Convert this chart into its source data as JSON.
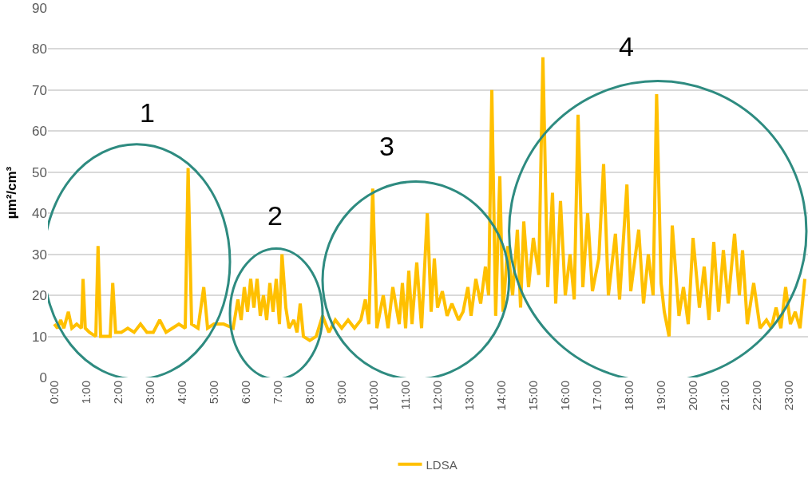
{
  "chart_data": {
    "type": "line",
    "ylabel": "µm²/cm³",
    "x": [
      0,
      0.1,
      0.2,
      0.3,
      0.44,
      0.55,
      0.7,
      0.85,
      0.9,
      0.97,
      1.1,
      1.3,
      1.37,
      1.45,
      1.6,
      1.75,
      1.83,
      1.92,
      2.1,
      2.3,
      2.5,
      2.7,
      2.9,
      3.1,
      3.3,
      3.5,
      3.7,
      3.9,
      4.1,
      4.19,
      4.3,
      4.5,
      4.68,
      4.8,
      5.0,
      5.3,
      5.6,
      5.75,
      5.85,
      5.95,
      6.05,
      6.15,
      6.25,
      6.35,
      6.45,
      6.55,
      6.65,
      6.75,
      6.85,
      6.95,
      7.05,
      7.13,
      7.25,
      7.35,
      7.5,
      7.6,
      7.7,
      7.8,
      8.0,
      8.2,
      8.4,
      8.6,
      8.8,
      9.0,
      9.2,
      9.4,
      9.6,
      9.74,
      9.85,
      9.97,
      10.1,
      10.3,
      10.45,
      10.6,
      10.8,
      10.9,
      11.0,
      11.1,
      11.2,
      11.35,
      11.5,
      11.68,
      11.8,
      11.9,
      12.0,
      12.15,
      12.3,
      12.45,
      12.66,
      12.8,
      12.95,
      13.05,
      13.2,
      13.35,
      13.5,
      13.6,
      13.7,
      13.82,
      13.95,
      14.05,
      14.2,
      14.35,
      14.5,
      14.6,
      14.7,
      14.85,
      15.0,
      15.17,
      15.3,
      15.45,
      15.6,
      15.7,
      15.85,
      16.0,
      16.15,
      16.28,
      16.4,
      16.55,
      16.7,
      16.85,
      17.05,
      17.2,
      17.35,
      17.57,
      17.7,
      17.93,
      18.05,
      18.3,
      18.45,
      18.6,
      18.75,
      18.86,
      19.0,
      19.1,
      19.25,
      19.35,
      19.56,
      19.7,
      19.85,
      20.0,
      20.2,
      20.35,
      20.5,
      20.65,
      20.8,
      20.95,
      21.1,
      21.3,
      21.45,
      21.55,
      21.7,
      21.9,
      22.1,
      22.3,
      22.45,
      22.6,
      22.75,
      22.9,
      23.05,
      23.2,
      23.35,
      23.5
    ],
    "series": [
      {
        "name": "LDSA",
        "color": "#ffc000",
        "values": [
          13,
          12,
          14,
          12,
          16,
          12,
          13,
          12,
          24,
          12,
          11,
          10,
          32,
          10,
          10,
          10,
          23,
          11,
          11,
          12,
          11,
          13,
          11,
          11,
          14,
          11,
          12,
          13,
          12,
          51,
          13,
          12,
          22,
          12,
          13,
          13,
          12,
          19,
          14,
          22,
          16,
          24,
          17,
          24,
          15,
          20,
          14,
          23,
          16,
          24,
          13,
          30,
          17,
          12,
          14,
          11,
          18,
          10,
          9,
          10,
          15,
          11,
          14,
          12,
          14,
          12,
          14,
          19,
          13,
          46,
          12,
          20,
          12,
          22,
          13,
          23,
          12,
          26,
          13,
          28,
          12,
          40,
          16,
          29,
          17,
          21,
          15,
          18,
          14,
          16,
          22,
          15,
          24,
          18,
          27,
          20,
          70,
          15,
          49,
          16,
          32,
          20,
          36,
          17,
          38,
          22,
          34,
          25,
          78,
          22,
          45,
          18,
          43,
          20,
          30,
          19,
          64,
          22,
          40,
          21,
          29,
          52,
          20,
          35,
          19,
          47,
          21,
          36,
          18,
          30,
          20,
          69,
          23,
          16,
          10,
          37,
          15,
          22,
          13,
          34,
          17,
          27,
          14,
          33,
          16,
          31,
          18,
          35,
          20,
          31,
          13,
          23,
          12,
          14,
          12,
          17,
          12,
          22,
          13,
          16,
          12,
          24
        ]
      }
    ],
    "xlim": [
      -0.2,
      23.6
    ],
    "xticks": [
      {
        "value": 0,
        "label": "0:00"
      },
      {
        "value": 1,
        "label": "1:00"
      },
      {
        "value": 2,
        "label": "2:00"
      },
      {
        "value": 3,
        "label": "3:00"
      },
      {
        "value": 4,
        "label": "4:00"
      },
      {
        "value": 5,
        "label": "5:00"
      },
      {
        "value": 6,
        "label": "6:00"
      },
      {
        "value": 7,
        "label": "7:00"
      },
      {
        "value": 8,
        "label": "8:00"
      },
      {
        "value": 9,
        "label": "9:00"
      },
      {
        "value": 10,
        "label": "10:00"
      },
      {
        "value": 11,
        "label": "11:00"
      },
      {
        "value": 12,
        "label": "12:00"
      },
      {
        "value": 13,
        "label": "13:00"
      },
      {
        "value": 14,
        "label": "14:00"
      },
      {
        "value": 15,
        "label": "15:00"
      },
      {
        "value": 16,
        "label": "16:00"
      },
      {
        "value": 17,
        "label": "17:00"
      },
      {
        "value": 18,
        "label": "18:00"
      },
      {
        "value": 19,
        "label": "19:00"
      },
      {
        "value": 20,
        "label": "20:00"
      },
      {
        "value": 21,
        "label": "21:00"
      },
      {
        "value": 22,
        "label": "22:00"
      },
      {
        "value": 23,
        "label": "23:00"
      }
    ],
    "ylim": [
      0,
      90
    ],
    "yticks": [
      0,
      10,
      20,
      30,
      40,
      50,
      60,
      70,
      80,
      90
    ],
    "grid": "y",
    "legend": "bottom",
    "annotations": [
      "1",
      "2",
      "3",
      "4"
    ]
  }
}
